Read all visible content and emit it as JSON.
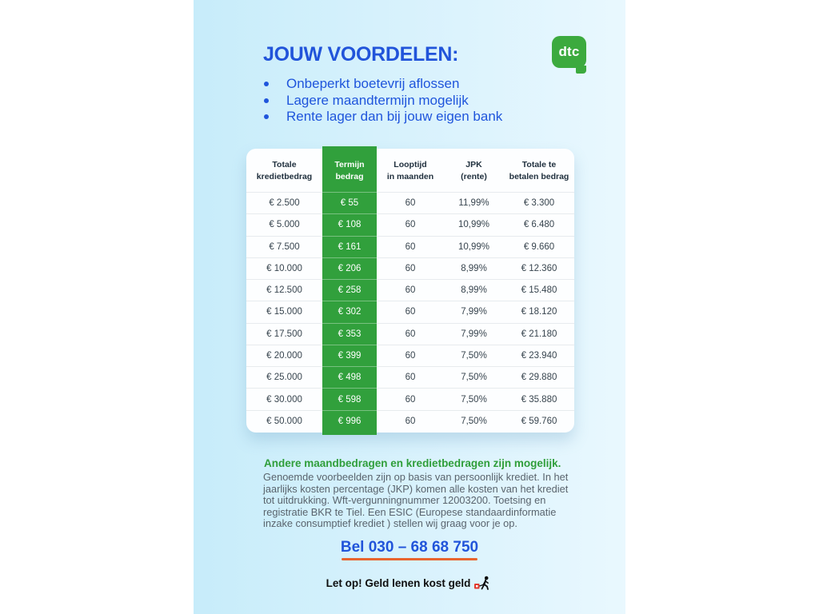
{
  "header": {
    "title": "JOUW VOORDELEN:",
    "bullets": [
      "Onbeperkt boetevrij aflossen",
      "Lagere maandtermijn mogelijk",
      "Rente lager dan bij jouw eigen bank"
    ],
    "logo_text": "dtc"
  },
  "table": {
    "headers": [
      {
        "l1": "Totale",
        "l2": "kredietbedrag"
      },
      {
        "l1": "Termijn",
        "l2": "bedrag"
      },
      {
        "l1": "Looptijd",
        "l2": "in maanden"
      },
      {
        "l1": "JPK",
        "l2": "(rente)"
      },
      {
        "l1": "Totale te",
        "l2": "betalen bedrag"
      }
    ],
    "rows": [
      [
        "€ 2.500",
        "€ 55",
        "60",
        "11,99%",
        "€ 3.300"
      ],
      [
        "€ 5.000",
        "€ 108",
        "60",
        "10,99%",
        "€ 6.480"
      ],
      [
        "€ 7.500",
        "€ 161",
        "60",
        "10,99%",
        "€ 9.660"
      ],
      [
        "€ 10.000",
        "€ 206",
        "60",
        "8,99%",
        "€ 12.360"
      ],
      [
        "€ 12.500",
        "€ 258",
        "60",
        "8,99%",
        "€ 15.480"
      ],
      [
        "€ 15.000",
        "€ 302",
        "60",
        "7,99%",
        "€ 18.120"
      ],
      [
        "€ 17.500",
        "€ 353",
        "60",
        "7,99%",
        "€ 21.180"
      ],
      [
        "€ 20.000",
        "€ 399",
        "60",
        "7,50%",
        "€ 23.940"
      ],
      [
        "€ 25.000",
        "€ 498",
        "60",
        "7,50%",
        "€ 29.880"
      ],
      [
        "€ 30.000",
        "€ 598",
        "60",
        "7,50%",
        "€ 35.880"
      ],
      [
        "€ 50.000",
        "€ 996",
        "60",
        "7,50%",
        "€ 59.760"
      ]
    ]
  },
  "footer": {
    "highlight": "Andere maandbedragen en kredietbedragen zijn mogelijk.",
    "disclaimer": "Genoemde voorbeelden zijn op basis van persoonlijk krediet. In het jaarlijks kosten percentage (JKP) komen alle kosten van het krediet tot uitdrukking. Wft-vergunningnummer 12003200. Toetsing en registratie BKR te Tiel. Een ESIC (Europese standaardinformatie inzake consumptief krediet ) stellen wij graag voor je op.",
    "phone": "Bel 030 – 68 68 750",
    "warning": "Let op! Geld lenen kost geld"
  },
  "colors": {
    "accent_blue": "#2154da",
    "brand_green": "#3caa3e",
    "table_green": "#31a03c",
    "footer_green": "#2f9e3a",
    "underline_orange": "#e8642e",
    "warning_red": "#e23a2e",
    "page_bg_left": "#c7ecfa",
    "page_bg_right": "#e9f8fe"
  }
}
